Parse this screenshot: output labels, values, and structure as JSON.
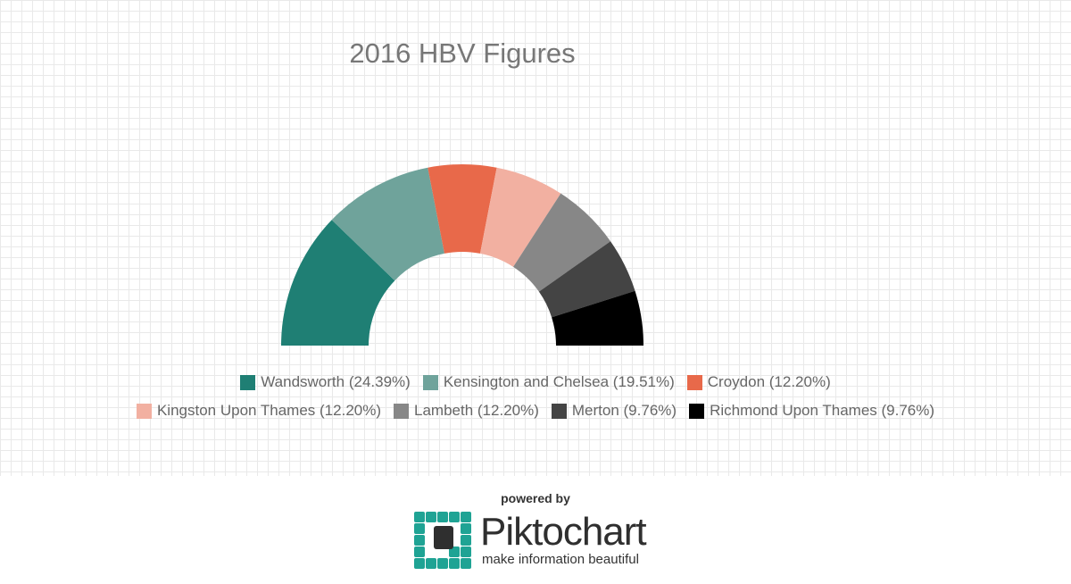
{
  "chart_data": {
    "type": "semi-donut",
    "title": "2016 HBV Figures",
    "categories": [
      "Wandsworth (24.39%)",
      "Kensington and Chelsea (19.51%)",
      "Croydon (12.20%)",
      "Kingston Upon Thames (12.20%)",
      "Lambeth (12.20%)",
      "Merton (9.76%)",
      "Richmond Upon Thames (9.76%)"
    ],
    "values": [
      24.39,
      19.51,
      12.2,
      12.2,
      12.2,
      9.76,
      9.76
    ],
    "colors": [
      "#1f7f74",
      "#6fa39b",
      "#e8694a",
      "#f2b0a1",
      "#878787",
      "#444444",
      "#000000"
    ]
  },
  "footer": {
    "powered_by": "powered by",
    "brand": "Piktochart",
    "tagline": "make information beautiful"
  }
}
